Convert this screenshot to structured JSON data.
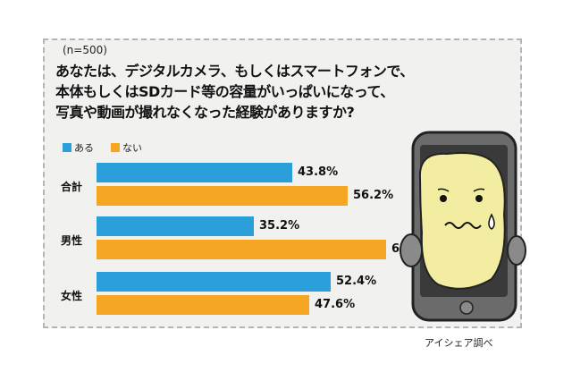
{
  "sample_size": "(n=500)",
  "question": [
    "あなたは、デジタルカメラ、もしくはスマートフォンで、",
    "本体もしくはSDカード等の容量がいっぱいになって、",
    "写真や動画が撮れなくなった経験がありますか?"
  ],
  "source": "アイシェア調べ",
  "colors": {
    "yes": "#2b9fd9",
    "no": "#f5a623"
  },
  "chart_data": {
    "type": "bar",
    "orientation": "horizontal",
    "categories": [
      "合計",
      "男性",
      "女性"
    ],
    "series": [
      {
        "name": "ある",
        "values": [
          43.8,
          35.2,
          52.4
        ]
      },
      {
        "name": "ない",
        "values": [
          56.2,
          64.8,
          47.6
        ]
      }
    ],
    "value_labels": [
      [
        "43.8%",
        "56.2%"
      ],
      [
        "35.2%",
        "64.8%"
      ],
      [
        "52.4%",
        "47.6%"
      ]
    ],
    "xlim": [
      0,
      100
    ],
    "legend_position": "top-left",
    "grid": false
  }
}
